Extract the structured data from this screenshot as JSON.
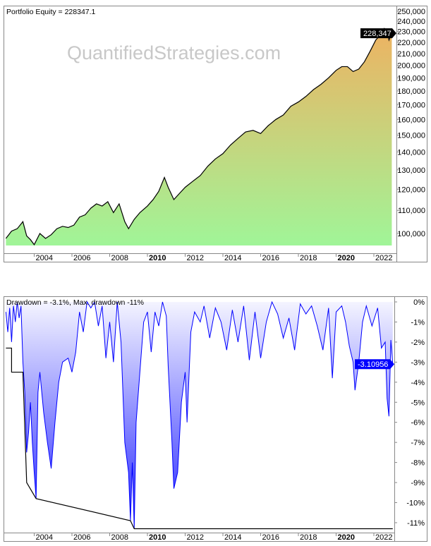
{
  "chart_data": [
    {
      "type": "area",
      "title": "Portfolio Equity = 228347.1",
      "watermark": "QuantifiedStrategies.com",
      "y_scale": "log",
      "ylim": [
        95000,
        250000
      ],
      "y_ticks": [
        250000,
        240000,
        230000,
        220000,
        210000,
        200000,
        190000,
        180000,
        170000,
        160000,
        150000,
        140000,
        130000,
        120000,
        110000,
        100000
      ],
      "y_tick_labels": [
        "250,000",
        "240,000",
        "230,000",
        "220,000",
        "210,000",
        "200,000",
        "190,000",
        "180,000",
        "170,000",
        "160,000",
        "150,000",
        "140,000",
        "130,000",
        "120,000",
        "110,000",
        "100,000"
      ],
      "x_ticks": [
        2004,
        2006,
        2008,
        2010,
        2012,
        2014,
        2016,
        2018,
        2020,
        2022
      ],
      "x_tick_labels": [
        "2004",
        "2006",
        "2008",
        "2010",
        "2012",
        "2014",
        "2016",
        "2018",
        "2020",
        "2022"
      ],
      "x_bold_ticks": [
        "2010",
        "2020"
      ],
      "last_value_label": "228,347",
      "colors": {
        "line": "#000000",
        "fill_top": "#f0b060",
        "fill_bottom": "#a0f598"
      },
      "x": [
        2002.5,
        2002.8,
        2003.1,
        2003.4,
        2003.6,
        2003.8,
        2004.0,
        2004.3,
        2004.6,
        2004.9,
        2005.2,
        2005.5,
        2005.8,
        2006.1,
        2006.4,
        2006.7,
        2007.0,
        2007.3,
        2007.6,
        2007.9,
        2008.2,
        2008.5,
        2008.8,
        2009.0,
        2009.3,
        2009.6,
        2010.0,
        2010.3,
        2010.6,
        2010.9,
        2011.1,
        2011.4,
        2011.7,
        2012.0,
        2012.4,
        2012.8,
        2013.2,
        2013.6,
        2014.0,
        2014.4,
        2014.8,
        2015.2,
        2015.6,
        2016.0,
        2016.4,
        2016.8,
        2017.2,
        2017.6,
        2018.0,
        2018.4,
        2018.8,
        2019.2,
        2019.6,
        2020.0,
        2020.3,
        2020.6,
        2020.9,
        2021.2,
        2021.5,
        2021.8,
        2022.1,
        2022.4,
        2022.55,
        2022.7,
        2022.8,
        2022.95
      ],
      "values": [
        98000,
        101000,
        102000,
        105000,
        99000,
        97500,
        95500,
        100000,
        98000,
        99500,
        102000,
        103000,
        102500,
        103500,
        107000,
        108000,
        111000,
        113000,
        112000,
        114000,
        109000,
        113000,
        105000,
        102000,
        106000,
        109000,
        112000,
        115000,
        119000,
        126000,
        121000,
        115000,
        118000,
        121000,
        124000,
        127000,
        132000,
        136000,
        139000,
        144000,
        148000,
        152000,
        153000,
        151000,
        156000,
        160000,
        163000,
        169000,
        172000,
        176000,
        181000,
        185000,
        190000,
        196000,
        199000,
        199000,
        195000,
        197000,
        203000,
        212000,
        222000,
        228000,
        233000,
        231000,
        222000,
        228347
      ]
    },
    {
      "type": "area",
      "title": "Drawdown = -3.1%, Max. drawdown -11%",
      "ylim": [
        -11.5,
        0
      ],
      "y_ticks": [
        0,
        -1,
        -2,
        -3,
        -4,
        -5,
        -6,
        -7,
        -8,
        -9,
        -10,
        -11
      ],
      "y_tick_labels": [
        "0%",
        "-1%",
        "-2%",
        "-3%",
        "-4%",
        "-5%",
        "-6%",
        "-7%",
        "-8%",
        "-9%",
        "-10%",
        "-11%"
      ],
      "x_ticks": [
        2004,
        2006,
        2008,
        2010,
        2012,
        2014,
        2016,
        2018,
        2020,
        2022
      ],
      "x_tick_labels": [
        "2004",
        "2006",
        "2008",
        "2010",
        "2012",
        "2014",
        "2016",
        "2018",
        "2020",
        "2022"
      ],
      "x_bold_ticks": [
        "2010",
        "2020"
      ],
      "last_value_label": "-3.10956",
      "colors": {
        "line": "#0000ff",
        "fill_top": "#f4f4ff",
        "fill_bottom": "#3a3aff",
        "max_dd_line": "#000000",
        "label_bg": "#0000ff"
      },
      "series": [
        {
          "x": [
            2002.5,
            2002.6,
            2002.7,
            2002.8,
            2002.9,
            2003.0,
            2003.1,
            2003.2,
            2003.3,
            2003.4,
            2003.5,
            2003.6,
            2003.7,
            2003.8,
            2003.9,
            2004.0,
            2004.1,
            2004.2,
            2004.3,
            2004.5,
            2004.7,
            2004.9,
            2005.1,
            2005.3,
            2005.5,
            2005.8,
            2006.0,
            2006.2,
            2006.4,
            2006.6,
            2006.8,
            2007.0,
            2007.2,
            2007.4,
            2007.6,
            2007.8,
            2008.0,
            2008.2,
            2008.4,
            2008.6,
            2008.8,
            2009.0,
            2009.1,
            2009.2,
            2009.3,
            2009.4,
            2009.6,
            2009.8,
            2010.0,
            2010.2,
            2010.4,
            2010.6,
            2010.8,
            2011.0,
            2011.1,
            2011.3,
            2011.4,
            2011.6,
            2011.8,
            2012.0,
            2012.1,
            2012.3,
            2012.5,
            2012.8,
            2013.0,
            2013.3,
            2013.6,
            2013.9,
            2014.2,
            2014.5,
            2014.8,
            2015.1,
            2015.4,
            2015.7,
            2016.0,
            2016.3,
            2016.6,
            2016.9,
            2017.2,
            2017.5,
            2017.8,
            2018.1,
            2018.4,
            2018.7,
            2019.0,
            2019.3,
            2019.6,
            2019.8,
            2020.0,
            2020.3,
            2020.5,
            2020.7,
            2020.9,
            2021.0,
            2021.2,
            2021.4,
            2021.6,
            2021.9,
            2022.2,
            2022.4,
            2022.6,
            2022.7,
            2022.8,
            2022.9,
            2023.0
          ],
          "values": [
            -0.5,
            -1.5,
            -0.3,
            -2.0,
            -0.2,
            -1.0,
            0,
            -0.8,
            -0.2,
            -3.0,
            -4.5,
            -7.5,
            -6.5,
            -5.0,
            -7.0,
            -8.5,
            -9.8,
            -4.5,
            -3.5,
            -5.5,
            -7.0,
            -8.3,
            -6.0,
            -4.0,
            -3.0,
            -2.8,
            -3.5,
            -2.5,
            -0.5,
            -1.5,
            0,
            -0.3,
            0,
            -1.2,
            -0.2,
            -2.8,
            -1.0,
            -3.0,
            0,
            -2.0,
            -7.0,
            -8.5,
            -10.9,
            -8.0,
            -11.3,
            -6.0,
            -3.5,
            -1.0,
            -0.5,
            -2.5,
            -0.5,
            -1.2,
            0,
            -0.7,
            -3.2,
            -7.0,
            -9.3,
            -8.5,
            -5.0,
            -3.5,
            -6.0,
            -1.5,
            -0.5,
            -1.0,
            -0.2,
            -1.8,
            -0.3,
            -1.0,
            -2.4,
            -0.4,
            -2.0,
            -0.2,
            -2.9,
            -0.5,
            -2.8,
            -1.0,
            0,
            -0.6,
            -1.8,
            -0.8,
            -2.4,
            -0.1,
            -0.6,
            -0.2,
            -1.2,
            -2.4,
            -0.3,
            -3.8,
            -0.5,
            -0.2,
            -1.0,
            -2.2,
            -3.0,
            -4.4,
            -3.0,
            -1.0,
            -0.2,
            -1.2,
            -0.3,
            -2.3,
            -2.0,
            -4.8,
            -5.7,
            -1.9,
            -3.1
          ]
        },
        {
          "name": "max drawdown",
          "x": [
            2002.5,
            2002.8,
            2002.8,
            2003.4,
            2003.6,
            2004.1,
            2009.1,
            2009.3,
            2023.0
          ],
          "values": [
            -2.3,
            -2.3,
            -3.5,
            -3.5,
            -9.0,
            -9.8,
            -10.9,
            -11.3,
            -11.3
          ]
        }
      ]
    }
  ]
}
